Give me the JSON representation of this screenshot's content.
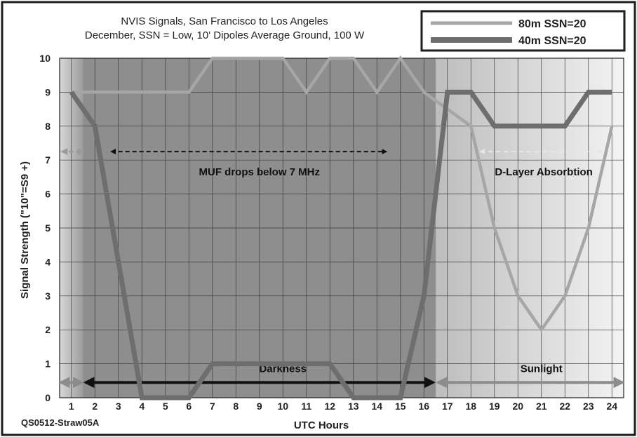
{
  "chart_data": {
    "type": "line",
    "title": "NVIS Signals, San Francisco to Los Angeles",
    "subtitle": "December, SSN = Low, 10' Dipoles Average Ground, 100 W",
    "xlabel": "UTC Hours",
    "ylabel": "Signal Strength (\"10\"=S9 +)",
    "xlim": [
      0.5,
      24.5
    ],
    "ylim": [
      0,
      10
    ],
    "x_ticks": [
      "1",
      "2",
      "3",
      "4",
      "5",
      "6",
      "7",
      "8",
      "9",
      "10",
      "11",
      "12",
      "13",
      "14",
      "15",
      "16",
      "17",
      "18",
      "19",
      "20",
      "21",
      "22",
      "23",
      "24"
    ],
    "y_ticks": [
      "0",
      "1",
      "2",
      "3",
      "4",
      "5",
      "6",
      "7",
      "8",
      "9",
      "10"
    ],
    "grid": true,
    "legend_position": "top-right",
    "x": [
      1,
      2,
      3,
      4,
      5,
      6,
      7,
      8,
      9,
      10,
      11,
      12,
      13,
      14,
      15,
      16,
      17,
      18,
      19,
      20,
      21,
      22,
      23,
      24
    ],
    "series": [
      {
        "name": "80m SSN=20",
        "color": "#a6a6a6",
        "values": [
          9,
          9,
          9,
          9,
          9,
          9,
          10,
          10,
          10,
          10,
          9,
          10,
          10,
          9,
          10,
          9,
          8.5,
          8,
          5,
          3,
          2,
          3,
          5,
          8
        ]
      },
      {
        "name": "40m SSN=20",
        "color": "#6e6e6e",
        "values": [
          9,
          8,
          4,
          0,
          0,
          0,
          1,
          1,
          1,
          1,
          1,
          1,
          0,
          0,
          0,
          3,
          9,
          9,
          8,
          8,
          8,
          8,
          9,
          9
        ]
      }
    ],
    "annotations": {
      "muf": "MUF drops below 7 MHz",
      "dlayer": "D-Layer Absorbtion",
      "darkness": "Darkness",
      "sunlight": "Sunlight"
    },
    "credit": "QS0512-Straw05A"
  }
}
